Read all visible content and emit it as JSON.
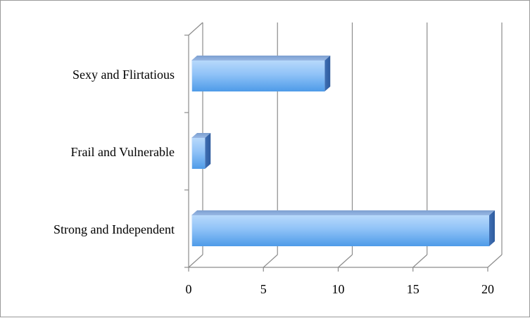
{
  "chart_data": {
    "type": "bar",
    "orientation": "horizontal",
    "style": "3d-bar",
    "categories": [
      "Strong and Independent",
      "Frail and Vulnerable",
      "Sexy and Flirtatious"
    ],
    "values": [
      20,
      1,
      9
    ],
    "title": "",
    "xlabel": "",
    "ylabel": "",
    "xlim": [
      0,
      20
    ],
    "xticks": [
      "0",
      "5",
      "10",
      "15",
      "20"
    ],
    "grid": true,
    "legend": "none",
    "bar_color": "#5ba3ee"
  }
}
